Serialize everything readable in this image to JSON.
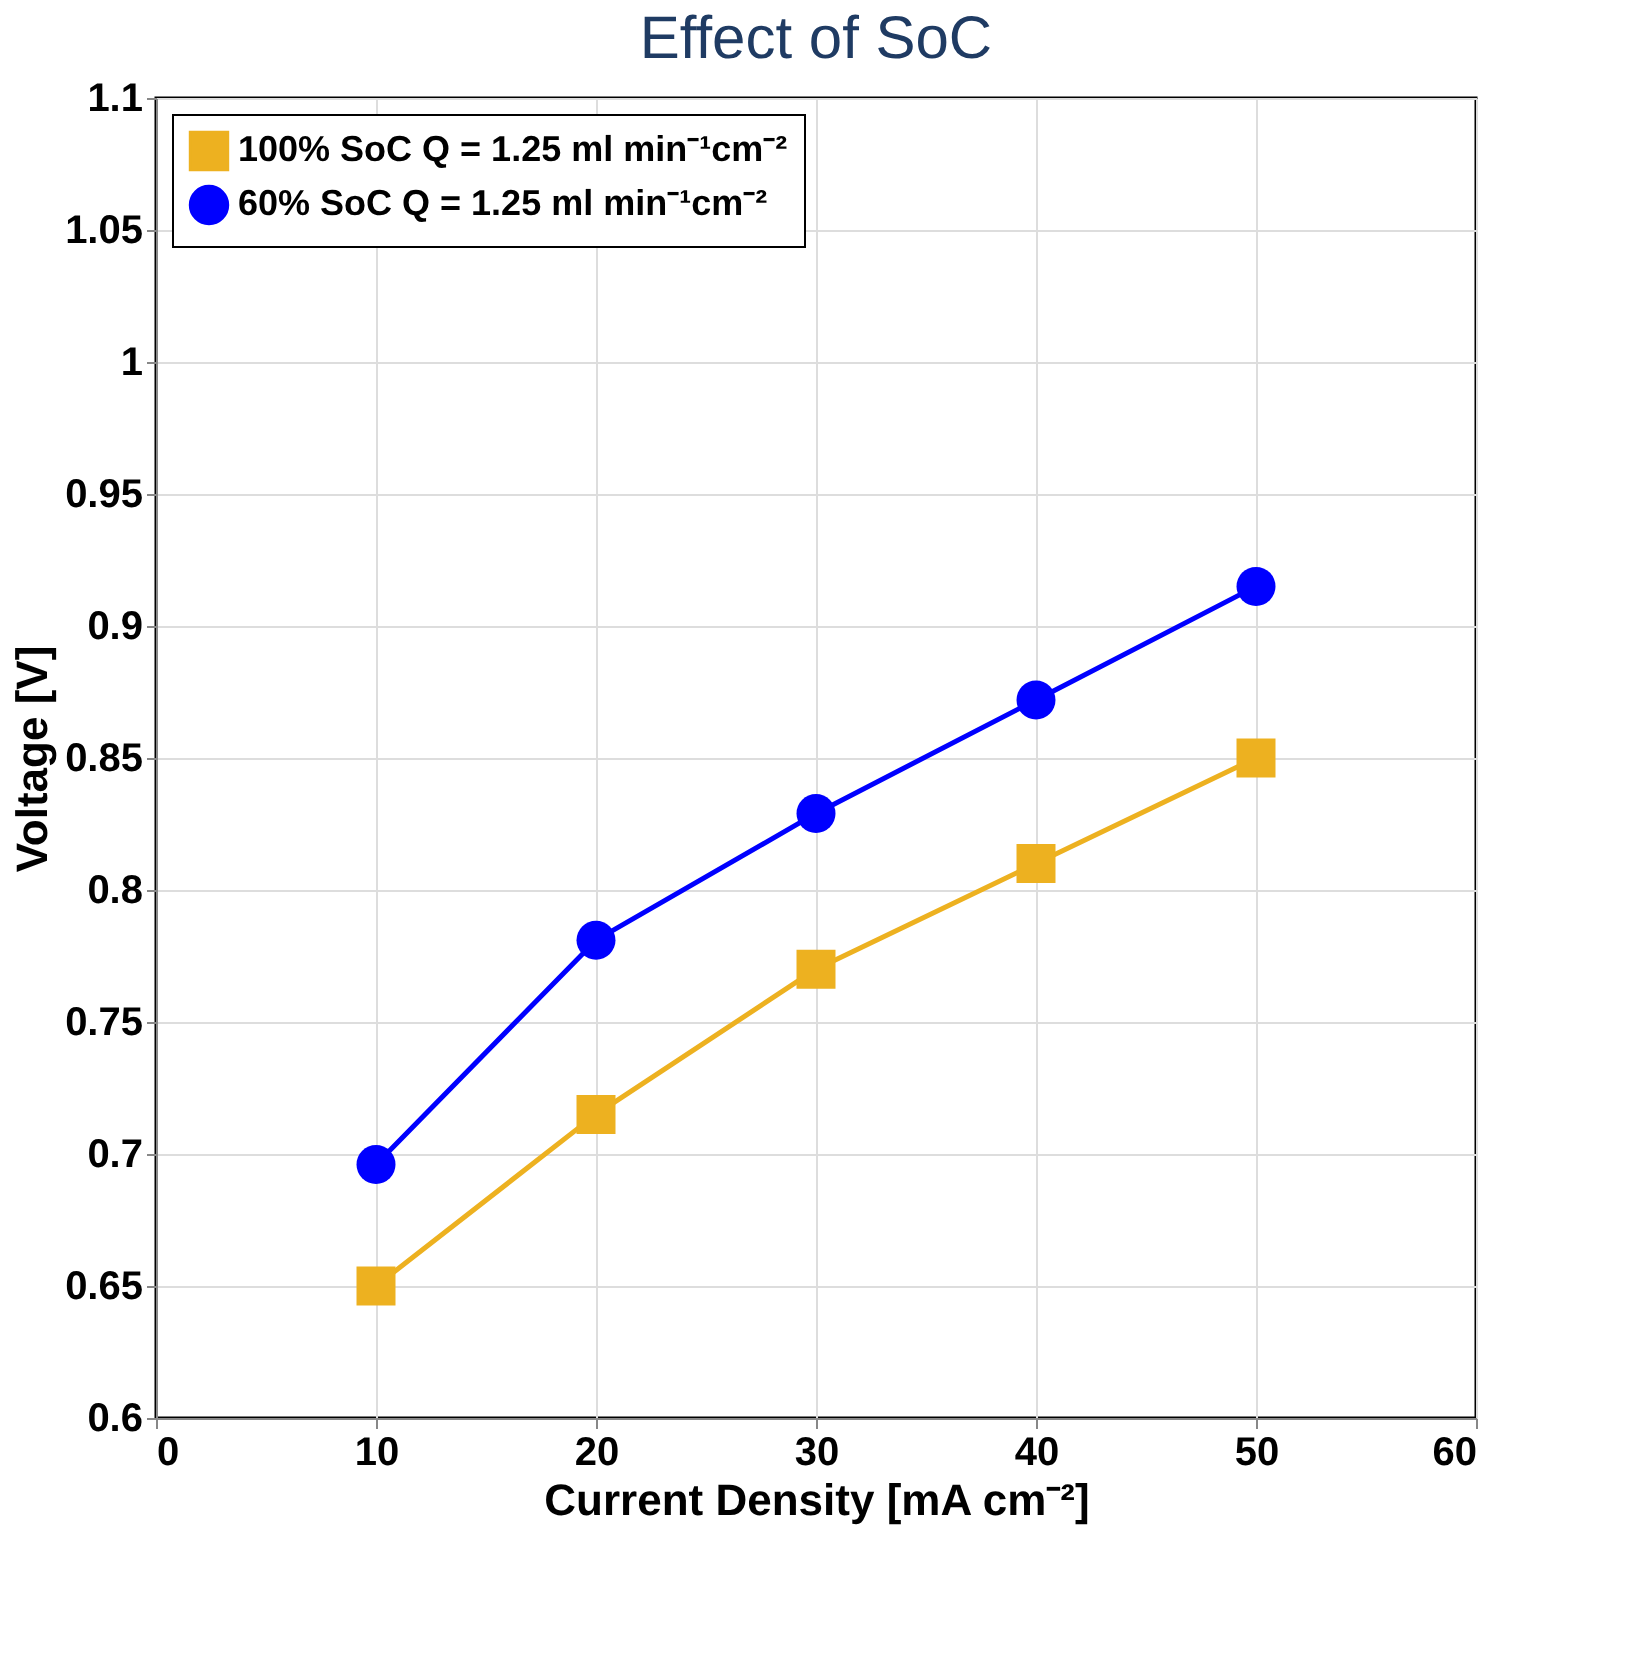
{
  "chart_data": {
    "type": "line",
    "title": "Effect of SoC",
    "xlabel": "Current Density [mA cm⁻²]",
    "ylabel": "Voltage [V]",
    "x": [
      10,
      20,
      30,
      40,
      50
    ],
    "series": [
      {
        "name": "100% SoC Q = 1.25 ml min⁻¹cm⁻²",
        "color": "#edb120",
        "marker": "square",
        "values": [
          0.65,
          0.715,
          0.77,
          0.81,
          0.85
        ]
      },
      {
        "name": "60% SoC Q = 1.25 ml min⁻¹cm⁻²",
        "color": "#0000ff",
        "marker": "circle",
        "values": [
          0.696,
          0.781,
          0.829,
          0.872,
          0.915
        ]
      }
    ],
    "xlim": [
      0,
      60
    ],
    "xticks": [
      0,
      10,
      20,
      30,
      40,
      50,
      60
    ],
    "ylim": [
      0.6,
      1.1
    ],
    "yticks": [
      0.6,
      0.65,
      0.7,
      0.75,
      0.8,
      0.85,
      0.9,
      0.95,
      1,
      1.05,
      1.1
    ],
    "grid": true,
    "legend": "top left",
    "line_style": "solid"
  }
}
